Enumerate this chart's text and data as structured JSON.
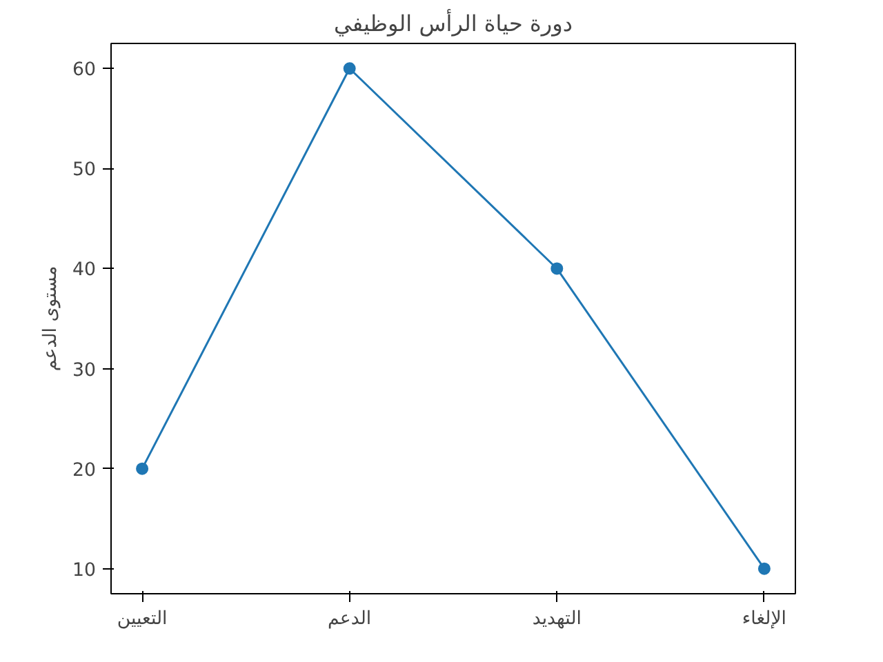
{
  "chart_data": {
    "type": "line",
    "title": "دورة حياة الرأس الوظيفي",
    "ylabel": "مستوى الدعم",
    "categories": [
      "التعيين",
      "الدعم",
      "التهديد",
      "الإلغاء"
    ],
    "series": [
      {
        "color": "#1f77b4",
        "values": [
          20,
          60,
          40,
          10
        ]
      }
    ],
    "ylim": [
      7.5,
      62.5
    ],
    "yticks": [
      10,
      20,
      30,
      40,
      50,
      60
    ],
    "marker": "circle",
    "line_style": "solid"
  }
}
